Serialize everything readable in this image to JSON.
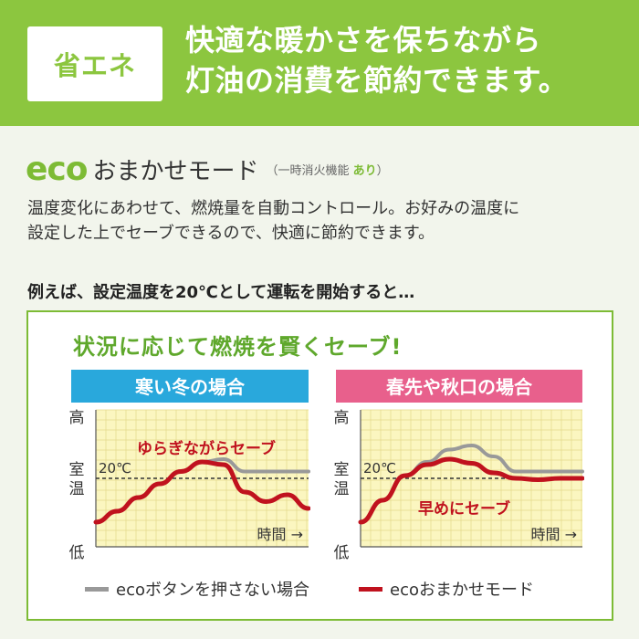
{
  "header": {
    "badge": "省エネ",
    "line1": "快適な暖かさを保ちながら",
    "line2": "灯油の消費を節約できます。"
  },
  "mode": {
    "eco": "eco",
    "name": "おまかせモード",
    "note_open": "（一時消火機能 ",
    "note_bold": "あり",
    "note_close": "）"
  },
  "description": {
    "line1": "温度変化にあわせて、燃焼量を自動コントロール。お好みの温度に",
    "line2": "設定した上でセーブできるので、快適に節約できます。"
  },
  "lead": "例えば、設定温度を20℃として運転を開始すると…",
  "panel": {
    "title": "状況に応じて燃焼を賢くセーブ!"
  },
  "colors": {
    "green": "#8cc63f",
    "winter_header": "#29a8dc",
    "spring_header": "#e8608c",
    "plot_bg": "#fbf6c0",
    "eco_line": "#c0121e",
    "normal_line": "#999999"
  },
  "chart_data": [
    {
      "type": "line",
      "title": "寒い冬の場合",
      "annotation": "ゆらぎながらセーブ",
      "xlabel": "時間 →",
      "y_ticks": [
        "高",
        "室温",
        "低"
      ],
      "reference_label": "20℃",
      "x": [
        0,
        10,
        20,
        30,
        40,
        50,
        60,
        70,
        80,
        90,
        100
      ],
      "ylim": [
        0,
        100
      ],
      "reference": 50,
      "series": [
        {
          "name": "ecoボタンを押さない場合",
          "values": [
            18,
            26,
            36,
            46,
            55,
            62,
            64,
            55,
            55,
            55,
            55
          ]
        },
        {
          "name": "ecoおまかせモード",
          "values": [
            18,
            26,
            36,
            46,
            55,
            62,
            60,
            40,
            33,
            38,
            28
          ]
        }
      ]
    },
    {
      "type": "line",
      "title": "春先や秋口の場合",
      "annotation": "早めにセーブ",
      "xlabel": "時間 →",
      "y_ticks": [
        "高",
        "室温",
        "低"
      ],
      "reference_label": "20℃",
      "x": [
        0,
        10,
        20,
        30,
        40,
        50,
        60,
        70,
        80,
        90,
        100
      ],
      "ylim": [
        0,
        100
      ],
      "reference": 50,
      "series": [
        {
          "name": "ecoボタンを押さない場合",
          "values": [
            18,
            34,
            52,
            62,
            71,
            74,
            66,
            55,
            55,
            55,
            55
          ]
        },
        {
          "name": "ecoおまかせモード",
          "values": [
            18,
            34,
            52,
            60,
            64,
            61,
            54,
            50,
            49,
            50,
            50
          ]
        }
      ]
    }
  ],
  "legend": {
    "normal": "ecoボタンを押さない場合",
    "eco": "ecoおまかせモード"
  }
}
